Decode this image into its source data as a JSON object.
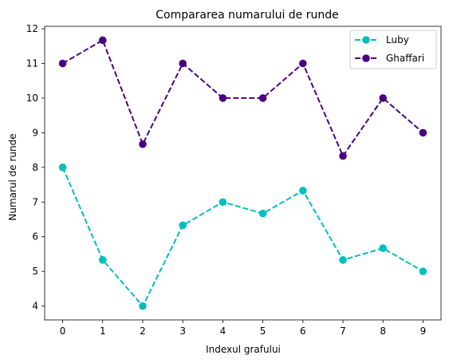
{
  "chart_data": {
    "type": "line",
    "title": "Compararea numarului de runde",
    "xlabel": "Indexul grafului",
    "ylabel": "Numarul de runde",
    "x": [
      0,
      1,
      2,
      3,
      4,
      5,
      6,
      7,
      8,
      9
    ],
    "xticks": [
      "0",
      "1",
      "2",
      "3",
      "4",
      "5",
      "6",
      "7",
      "8",
      "9"
    ],
    "yticks": [
      "4",
      "5",
      "6",
      "7",
      "8",
      "9",
      "10",
      "11",
      "12"
    ],
    "xlim": [
      -0.45,
      9.45
    ],
    "ylim": [
      3.6,
      12.07
    ],
    "grid": false,
    "legend_position": "top-right",
    "series": [
      {
        "name": "Luby",
        "color": "#00bfbf",
        "line_style": "dashed",
        "marker": "circle",
        "values": [
          8,
          5.33,
          4,
          6.33,
          7,
          6.67,
          7.33,
          5.33,
          5.67,
          5
        ]
      },
      {
        "name": "Ghaffari",
        "color": "#4b0082",
        "line_style": "dashed",
        "marker": "circle",
        "values": [
          11,
          11.67,
          8.67,
          11,
          10,
          10,
          11,
          8.33,
          10,
          9
        ]
      }
    ]
  }
}
